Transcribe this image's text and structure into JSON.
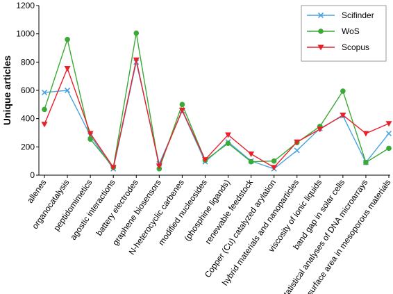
{
  "chart_data": {
    "type": "line",
    "title": "",
    "xlabel": "",
    "ylabel": "Unique articles",
    "ylim": [
      0,
      1200
    ],
    "yticks": [
      0,
      200,
      400,
      600,
      800,
      1000,
      1200
    ],
    "grid": false,
    "legend_position": "top-right",
    "categories": [
      "allenes",
      "organocatalysis",
      "peptidomimetics",
      "agostic interactions",
      "battery electrodes",
      "graphene biosensors",
      "N-heterocyclic carbenes",
      "modified nucleosides",
      "(phosphine ligands)",
      "renewable feedstock",
      "Copper (Cu) catalyzed arylation",
      "hybrid materials and nanoparticles",
      "viscosity of ionic liquids",
      "band gap in solar cells",
      "statistical analyses of DNA microarrays",
      "surface area in mesoporous materials"
    ],
    "series": [
      {
        "name": "Scifinder",
        "color": "#4aa3df",
        "marker": "x",
        "values": [
          585,
          600,
          280,
          45,
          800,
          80,
          455,
          95,
          235,
          100,
          45,
          175,
          330,
          420,
          90,
          295
        ]
      },
      {
        "name": "WoS",
        "color": "#3aa935",
        "marker": "circle",
        "values": [
          465,
          960,
          255,
          55,
          1005,
          45,
          500,
          105,
          225,
          95,
          100,
          230,
          345,
          595,
          90,
          190
        ]
      },
      {
        "name": "Scopus",
        "color": "#e8202a",
        "marker": "triangle-down",
        "values": [
          360,
          755,
          295,
          55,
          815,
          65,
          460,
          110,
          285,
          150,
          55,
          235,
          325,
          425,
          295,
          365
        ]
      }
    ]
  }
}
